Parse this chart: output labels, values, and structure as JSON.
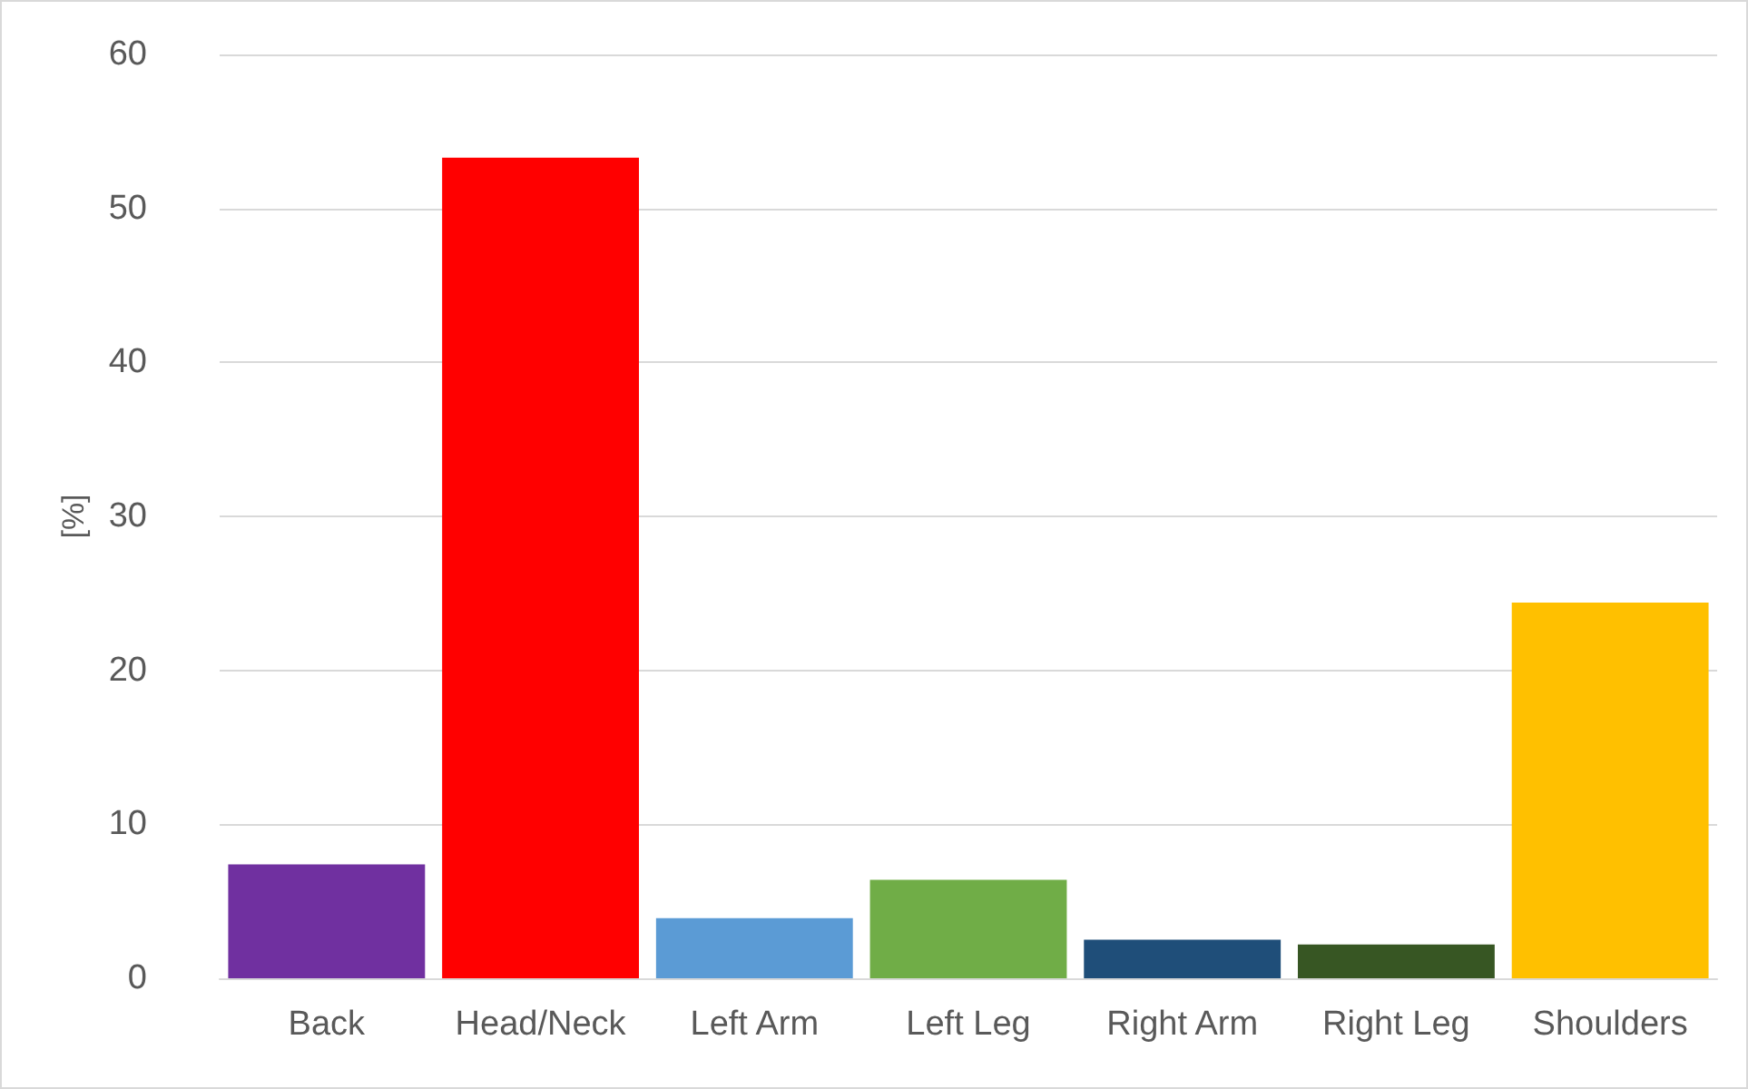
{
  "chart_data": {
    "type": "bar",
    "ylabel": "[%]",
    "categories": [
      "Back",
      "Head/Neck",
      "Left Arm",
      "Left Leg",
      "Right Arm",
      "Right Leg",
      "Shoulders"
    ],
    "values": [
      7.4,
      53.3,
      3.9,
      6.4,
      2.5,
      2.2,
      24.4
    ],
    "colors": [
      "#7030a0",
      "#ff0000",
      "#5b9bd5",
      "#70ad47",
      "#1f4e79",
      "#375623",
      "#ffc000"
    ],
    "ylim": [
      0,
      60
    ],
    "yticks": [
      0,
      10,
      20,
      30,
      40,
      50,
      60
    ],
    "grid": "y"
  }
}
